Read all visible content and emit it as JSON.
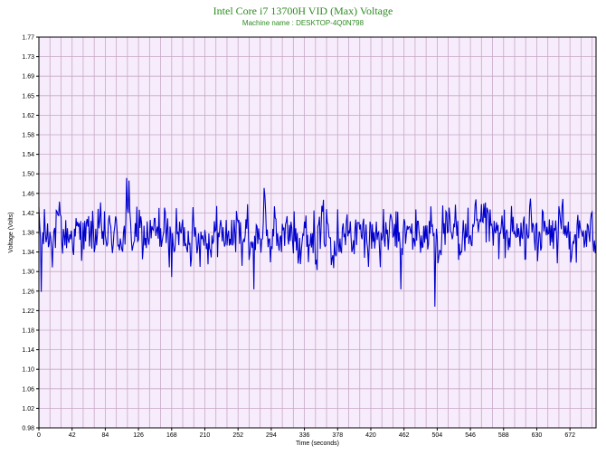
{
  "chart_data": {
    "type": "line",
    "title": "Intel Core i7 13700H VID (Max) Voltage",
    "subtitle": "Machine name : DESKTOP-4Q0N798",
    "xlabel": "Time (seconds)",
    "ylabel": "Voltage (Volts)",
    "xlim": [
      0,
      705
    ],
    "ylim": [
      0.98,
      1.77
    ],
    "x_ticks": [
      0,
      42,
      84,
      126,
      168,
      210,
      252,
      294,
      336,
      378,
      420,
      462,
      504,
      546,
      588,
      630,
      672
    ],
    "y_ticks": [
      "0.98",
      "1.02",
      "1.06",
      "1.10",
      "1.14",
      "1.18",
      "1.22",
      "1.26",
      "1.30",
      "1.34",
      "1.38",
      "1.42",
      "1.46",
      "1.50",
      "1.54",
      "1.58",
      "1.62",
      "1.65",
      "1.69",
      "1.73",
      "1.77"
    ],
    "grid": true,
    "colors": {
      "series": "#0000cc",
      "plot_bg": "#f7ecfb",
      "grid": "#c7a8c7",
      "title": "#2e8b22"
    },
    "series": [
      {
        "sample_interval_s": 1,
        "typical_range": [
          1.29,
          1.45
        ],
        "mean": 1.37,
        "notable_points": [
          {
            "x": 3,
            "y": 1.255
          },
          {
            "x": 111,
            "y": 1.485
          },
          {
            "x": 114,
            "y": 1.48
          },
          {
            "x": 168,
            "y": 1.285
          },
          {
            "x": 272,
            "y": 1.26
          },
          {
            "x": 285,
            "y": 1.465
          },
          {
            "x": 458,
            "y": 1.26
          },
          {
            "x": 501,
            "y": 1.225
          }
        ]
      }
    ]
  }
}
